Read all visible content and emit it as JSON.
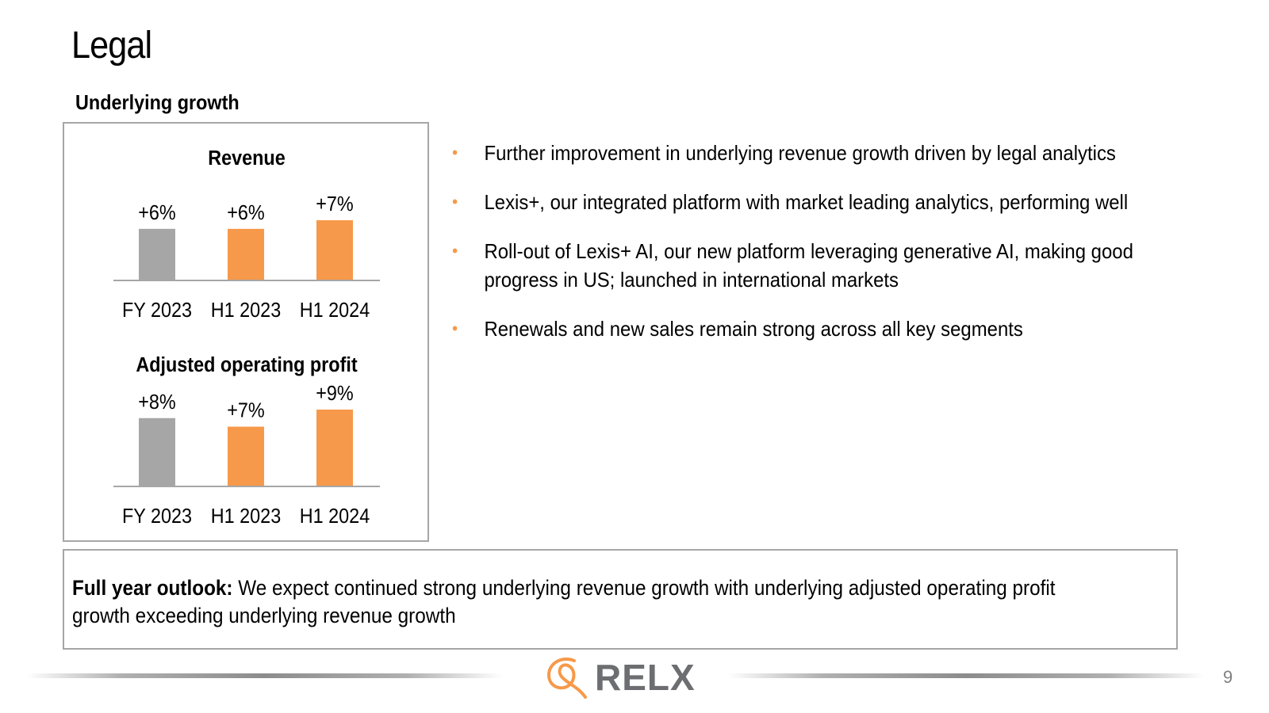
{
  "slide": {
    "title": "Legal",
    "section_heading": "Underlying growth",
    "page_number": "9"
  },
  "bullets": [
    "Further improvement in underlying revenue growth driven by legal analytics",
    "Lexis+, our integrated platform with market leading analytics, performing well",
    "Roll-out of Lexis+ AI, our new platform leveraging generative AI, making good progress in US; launched in international markets",
    "Renewals and new sales remain strong across all key segments"
  ],
  "outlook": {
    "label": "Full year outlook:",
    "text": " We expect continued strong underlying revenue growth with underlying adjusted operating profit growth exceeding underlying revenue growth"
  },
  "logo": {
    "text": "RELX",
    "icon": "relx-r-logo-icon"
  },
  "colors": {
    "accent_orange": "#f7994a",
    "baseline_gray": "#a6a6a6",
    "logo_gray": "#6d6e71"
  },
  "chart_data": [
    {
      "type": "bar",
      "title": "Revenue",
      "categories": [
        "FY 2023",
        "H1 2023",
        "H1 2024"
      ],
      "values": [
        6,
        6,
        7
      ],
      "data_labels": [
        "+6%",
        "+6%",
        "+7%"
      ],
      "unit": "%",
      "bar_colors": [
        "#a6a6a6",
        "#f7994a",
        "#f7994a"
      ],
      "ylim": [
        0,
        7
      ],
      "grid": false,
      "legend": "none"
    },
    {
      "type": "bar",
      "title": "Adjusted operating profit",
      "categories": [
        "FY 2023",
        "H1 2023",
        "H1 2024"
      ],
      "values": [
        8,
        7,
        9
      ],
      "data_labels": [
        "+8%",
        "+7%",
        "+9%"
      ],
      "unit": "%",
      "bar_colors": [
        "#a6a6a6",
        "#f7994a",
        "#f7994a"
      ],
      "ylim": [
        0,
        9
      ],
      "grid": false,
      "legend": "none"
    }
  ]
}
